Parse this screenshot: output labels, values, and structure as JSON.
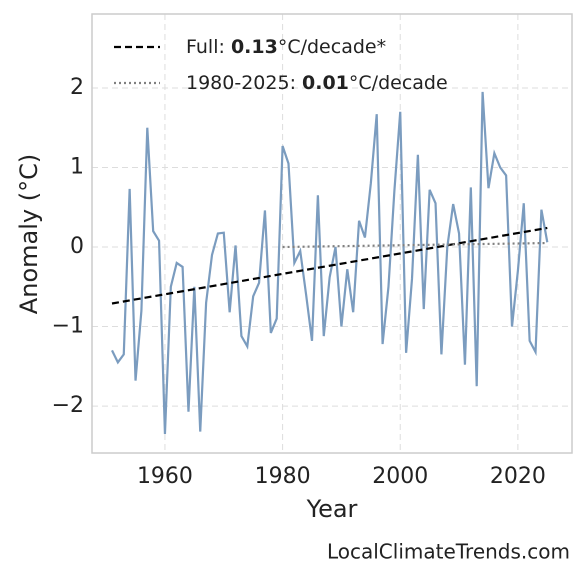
{
  "chart_data": {
    "type": "line",
    "x_label": "Year",
    "y_label": "Anomaly (°C)",
    "source": "LocalClimateTrends.com",
    "x": [
      1951,
      1952,
      1953,
      1954,
      1955,
      1956,
      1957,
      1958,
      1959,
      1960,
      1961,
      1962,
      1963,
      1964,
      1965,
      1966,
      1967,
      1968,
      1969,
      1970,
      1971,
      1972,
      1973,
      1974,
      1975,
      1976,
      1977,
      1978,
      1979,
      1980,
      1981,
      1982,
      1983,
      1984,
      1985,
      1986,
      1987,
      1988,
      1989,
      1990,
      1991,
      1992,
      1993,
      1994,
      1995,
      1996,
      1997,
      1998,
      1999,
      2000,
      2001,
      2002,
      2003,
      2004,
      2005,
      2006,
      2007,
      2008,
      2009,
      2010,
      2011,
      2012,
      2013,
      2014,
      2015,
      2016,
      2017,
      2018,
      2019,
      2020,
      2021,
      2022,
      2023,
      2024,
      2025
    ],
    "series": [
      {
        "color": "#7b9cbf",
        "values": [
          -1.3,
          -1.45,
          -1.35,
          0.73,
          -1.68,
          -0.8,
          1.5,
          0.2,
          0.08,
          -2.35,
          -0.5,
          -0.2,
          -0.25,
          -2.07,
          -0.5,
          -2.32,
          -0.7,
          -0.1,
          0.17,
          0.18,
          -0.82,
          0.02,
          -1.12,
          -1.25,
          -0.62,
          -0.45,
          0.46,
          -1.08,
          -0.9,
          1.27,
          1.05,
          -0.2,
          -0.05,
          -0.6,
          -1.18,
          0.65,
          -1.12,
          -0.38,
          0.0,
          -1.0,
          -0.28,
          -0.82,
          0.33,
          0.12,
          0.8,
          1.67,
          -1.22,
          -0.5,
          0.7,
          1.7,
          -1.33,
          -0.4,
          1.16,
          -0.78,
          0.72,
          0.55,
          -1.35,
          0.0,
          0.54,
          0.17,
          -1.48,
          0.75,
          -1.75,
          1.95,
          0.74,
          1.18,
          1.0,
          0.9,
          -1.0,
          -0.3,
          0.55,
          -1.18,
          -1.32,
          0.47,
          0.06
        ]
      }
    ],
    "trends": [
      {
        "color": "#000000",
        "dash": "7,4",
        "x": [
          1951,
          2025
        ],
        "values": [
          -0.71,
          0.24
        ],
        "legend": {
          "prefix": "Full: ",
          "bold": "0.13",
          "suffix": "°C/decade*"
        }
      },
      {
        "color": "#808080",
        "dash": "2,3",
        "x": [
          1980,
          2025
        ],
        "values": [
          0.0,
          0.05
        ],
        "legend": {
          "prefix": "1980-2025: ",
          "bold": "0.01",
          "suffix": "°C/decade"
        }
      }
    ],
    "xlim": [
      1947.6,
      2029.2
    ],
    "ylim": [
      -2.59,
      2.93
    ],
    "xticks": [
      1960,
      1980,
      2000,
      2020
    ],
    "yticks": [
      {
        "value": -2,
        "label": "−2"
      },
      {
        "value": -1,
        "label": "−1"
      },
      0,
      1,
      2
    ],
    "grid": true,
    "legend_position": "upper-left"
  }
}
